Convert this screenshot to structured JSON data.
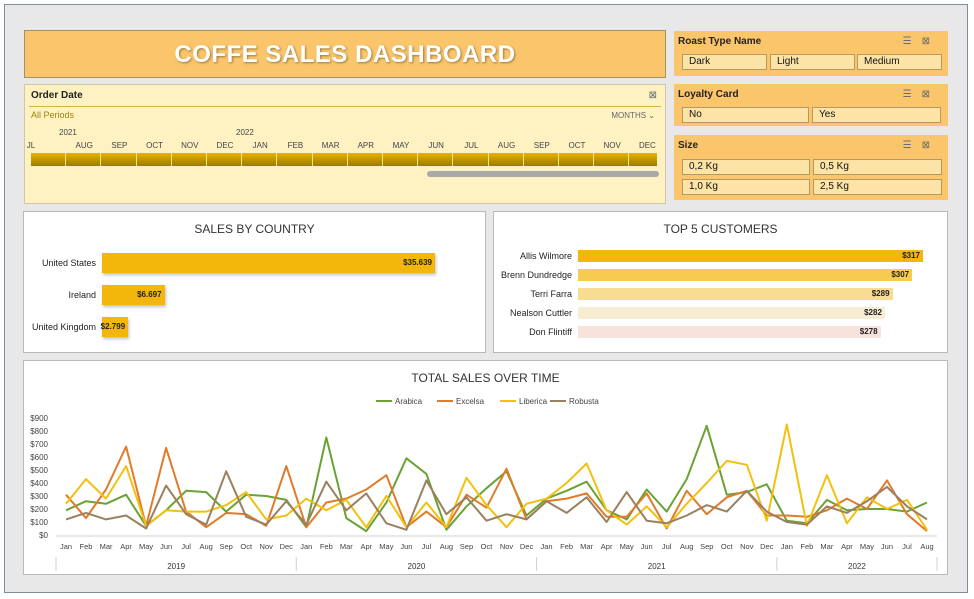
{
  "dashboard": {
    "title": "COFFE SALES DASHBOARD"
  },
  "colors": {
    "accent": "#fbc56b",
    "bar": "#f2b70a",
    "arabica": "#6aa236",
    "excelsa": "#e07b2a",
    "liberica": "#f2c10f",
    "robusta": "#9b8060"
  },
  "slicers": {
    "roast": {
      "title": "Roast Type Name",
      "options": [
        "Dark",
        "Light",
        "Medium"
      ]
    },
    "loyalty": {
      "title": "Loyalty Card",
      "options": [
        "No",
        "Yes"
      ]
    },
    "size": {
      "title": "Size",
      "options": [
        "0,2 Kg",
        "0,5 Kg",
        "1,0 Kg",
        "2,5 Kg"
      ]
    }
  },
  "order_date": {
    "title": "Order Date",
    "period": "All Periods",
    "unit": "MONTHS",
    "years": [
      "2021",
      "2022"
    ],
    "months": [
      "JL",
      "AUG",
      "SEP",
      "OCT",
      "NOV",
      "DEC",
      "JAN",
      "FEB",
      "MAR",
      "APR",
      "MAY",
      "JUN",
      "JUL",
      "AUG",
      "SEP",
      "OCT",
      "NOV",
      "DEC"
    ]
  },
  "chart_data": [
    {
      "type": "bar",
      "title": "SALES BY COUNTRY",
      "categories": [
        "United States",
        "Ireland",
        "United Kingdom"
      ],
      "values": [
        35639,
        6697,
        2799
      ],
      "labels": [
        "$35.639",
        "$6.697",
        "$2.799"
      ]
    },
    {
      "type": "bar",
      "title": "TOP 5 CUSTOMERS",
      "categories": [
        "Allis Wilmore",
        "Brenn Dundredge",
        "Terri Farra",
        "Nealson Cuttler",
        "Don Flintiff"
      ],
      "values": [
        317,
        307,
        289,
        282,
        278
      ],
      "labels": [
        "$317",
        "$307",
        "$289",
        "$282",
        "$278"
      ],
      "colors": [
        "#f2b70a",
        "#f6cb4f",
        "#f8dc93",
        "#f7ecd4",
        "#f7e2dc"
      ]
    },
    {
      "type": "line",
      "title": "TOTAL SALES OVER TIME",
      "y_ticks": [
        "$0",
        "$100",
        "$200",
        "$300",
        "$400",
        "$500",
        "$600",
        "$700",
        "$800",
        "$900"
      ],
      "ylim": [
        0,
        900
      ],
      "x_months": [
        "Jan",
        "Feb",
        "Mar",
        "Apr",
        "May",
        "Jun",
        "Jul",
        "Aug",
        "Sep",
        "Oct",
        "Nov",
        "Dec",
        "Jan",
        "Feb",
        "Mar",
        "Apr",
        "May",
        "Jun",
        "Jul",
        "Aug",
        "Sep",
        "Oct",
        "Nov",
        "Dec",
        "Jan",
        "Feb",
        "Mar",
        "Apr",
        "May",
        "Jun",
        "Jul",
        "Aug",
        "Sep",
        "Oct",
        "Nov",
        "Dec",
        "Jan",
        "Feb",
        "Mar",
        "Apr",
        "May",
        "Jun",
        "Jul",
        "Aug"
      ],
      "x_years": [
        "2019",
        "2020",
        "2021",
        "2022"
      ],
      "series": [
        {
          "name": "Arabica",
          "color": "#6aa236",
          "values": [
            190,
            260,
            240,
            310,
            70,
            190,
            340,
            330,
            180,
            310,
            300,
            270,
            60,
            750,
            130,
            30,
            250,
            590,
            470,
            40,
            220,
            360,
            490,
            150,
            280,
            340,
            410,
            190,
            120,
            350,
            180,
            430,
            840,
            310,
            330,
            390,
            110,
            90,
            270,
            190,
            200,
            200,
            180,
            250
          ]
        },
        {
          "name": "Excelsa",
          "color": "#e07b2a",
          "values": [
            310,
            130,
            350,
            680,
            70,
            670,
            180,
            60,
            170,
            160,
            70,
            530,
            60,
            250,
            280,
            350,
            460,
            60,
            180,
            60,
            310,
            210,
            510,
            120,
            260,
            280,
            320,
            140,
            140,
            320,
            50,
            340,
            160,
            290,
            340,
            150,
            150,
            140,
            190,
            280,
            200,
            420,
            160,
            30
          ]
        },
        {
          "name": "Liberica",
          "color": "#f2c10f",
          "values": [
            240,
            430,
            280,
            530,
            70,
            190,
            180,
            180,
            230,
            330,
            120,
            150,
            280,
            190,
            270,
            60,
            300,
            60,
            250,
            60,
            440,
            230,
            60,
            240,
            280,
            400,
            550,
            190,
            80,
            220,
            60,
            240,
            400,
            570,
            540,
            110,
            850,
            70,
            460,
            90,
            290,
            200,
            270,
            40
          ]
        },
        {
          "name": "Robusta",
          "color": "#9b8060",
          "values": [
            120,
            170,
            120,
            150,
            50,
            380,
            160,
            80,
            490,
            140,
            80,
            260,
            80,
            410,
            190,
            320,
            90,
            40,
            420,
            160,
            290,
            110,
            160,
            120,
            260,
            170,
            290,
            100,
            330,
            110,
            90,
            150,
            230,
            180,
            340,
            180,
            100,
            80,
            220,
            170,
            260,
            370,
            220,
            120
          ]
        }
      ]
    }
  ]
}
